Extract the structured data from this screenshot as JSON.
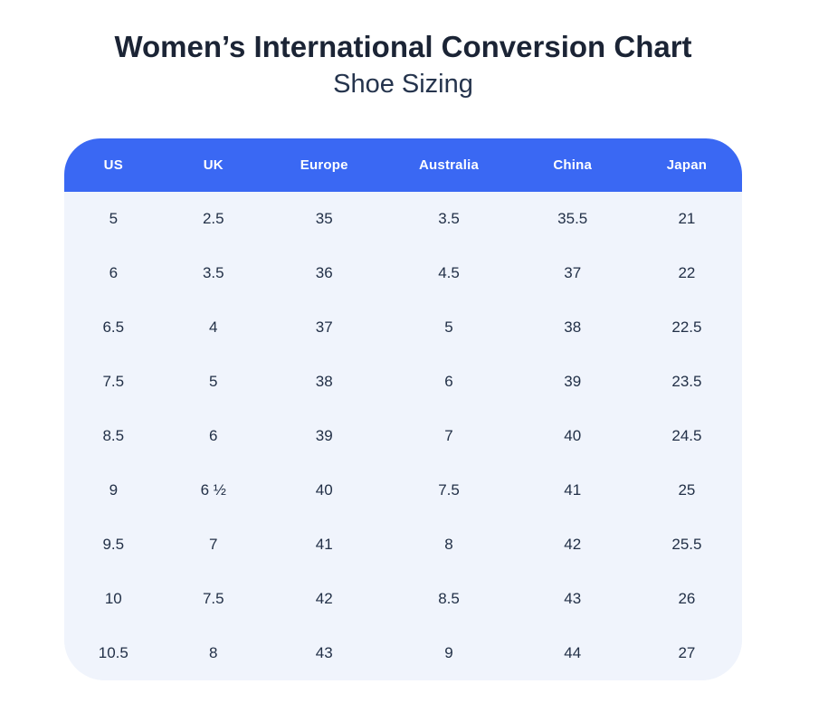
{
  "header": {
    "title": "Women’s International Conversion Chart",
    "subtitle": "Shoe Sizing"
  },
  "table": {
    "columns": [
      {
        "id": "us",
        "label": "US"
      },
      {
        "id": "uk",
        "label": "UK"
      },
      {
        "id": "europe",
        "label": "Europe"
      },
      {
        "id": "australia",
        "label": "Australia"
      },
      {
        "id": "china",
        "label": "China"
      },
      {
        "id": "japan",
        "label": "Japan"
      }
    ],
    "rows": [
      [
        "5",
        "2.5",
        "35",
        "3.5",
        "35.5",
        "21"
      ],
      [
        "6",
        "3.5",
        "36",
        "4.5",
        "37",
        "22"
      ],
      [
        "6.5",
        "4",
        "37",
        "5",
        "38",
        "22.5"
      ],
      [
        "7.5",
        "5",
        "38",
        "6",
        "39",
        "23.5"
      ],
      [
        "8.5",
        "6",
        "39",
        "7",
        "40",
        "24.5"
      ],
      [
        "9",
        "6 ½",
        "40",
        "7.5",
        "41",
        "25"
      ],
      [
        "9.5",
        "7",
        "41",
        "8",
        "42",
        "25.5"
      ],
      [
        "10",
        "7.5",
        "42",
        "8.5",
        "43",
        "26"
      ],
      [
        "10.5",
        "8",
        "43",
        "9",
        "44",
        "27"
      ]
    ]
  },
  "colors": {
    "page_bg": "#ffffff",
    "header_bg": "#3a68f3",
    "header_text": "#ffffff",
    "body_bg": "#f0f4fc",
    "cell_text": "#223047",
    "title_text": "#1b2435",
    "subtitle_text": "#25344d"
  },
  "chart_data": {
    "type": "table",
    "title": "Women’s International Conversion Chart",
    "subtitle": "Shoe Sizing",
    "columns": [
      "US",
      "UK",
      "Europe",
      "Australia",
      "China",
      "Japan"
    ],
    "rows": [
      [
        "5",
        "2.5",
        "35",
        "3.5",
        "35.5",
        "21"
      ],
      [
        "6",
        "3.5",
        "36",
        "4.5",
        "37",
        "22"
      ],
      [
        "6.5",
        "4",
        "37",
        "5",
        "38",
        "22.5"
      ],
      [
        "7.5",
        "5",
        "38",
        "6",
        "39",
        "23.5"
      ],
      [
        "8.5",
        "6",
        "39",
        "7",
        "40",
        "24.5"
      ],
      [
        "9",
        "6 ½",
        "40",
        "7.5",
        "41",
        "25"
      ],
      [
        "9.5",
        "7",
        "41",
        "8",
        "42",
        "25.5"
      ],
      [
        "10",
        "7.5",
        "42",
        "8.5",
        "43",
        "26"
      ],
      [
        "10.5",
        "8",
        "43",
        "9",
        "44",
        "27"
      ]
    ],
    "layout": {
      "header_position": "top",
      "header_style": "blue pill, rounded top corners",
      "body_style": "light blue rounded panel, no gridlines",
      "value_alignment": "center"
    }
  }
}
